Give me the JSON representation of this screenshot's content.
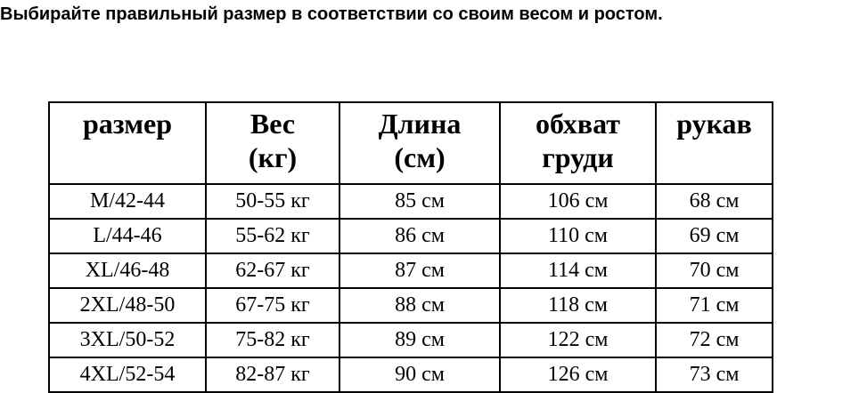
{
  "header": {
    "title": "Выбирайте правильный размер в соответствии со своим весом и ростом."
  },
  "table": {
    "columns": [
      [
        "размер"
      ],
      [
        "Вес",
        "(кг)"
      ],
      [
        "Длина",
        "(см)"
      ],
      [
        "обхват",
        "груди"
      ],
      [
        "рукав"
      ]
    ],
    "rows": [
      [
        "M/42-44",
        "50-55 кг",
        "85 см",
        "106 см",
        "68 см"
      ],
      [
        "L/44-46",
        "55-62 кг",
        "86 см",
        "110 см",
        "69 см"
      ],
      [
        "XL/46-48",
        "62-67 кг",
        "87 см",
        "114 см",
        "70 см"
      ],
      [
        "2XL/48-50",
        "67-75 кг",
        "88 см",
        "118 см",
        "71 см"
      ],
      [
        "3XL/50-52",
        "75-82 кг",
        "89 см",
        "122 см",
        "72 см"
      ],
      [
        "4XL/52-54",
        "82-87 кг",
        "90 см",
        "126 см",
        "73 см"
      ]
    ]
  }
}
